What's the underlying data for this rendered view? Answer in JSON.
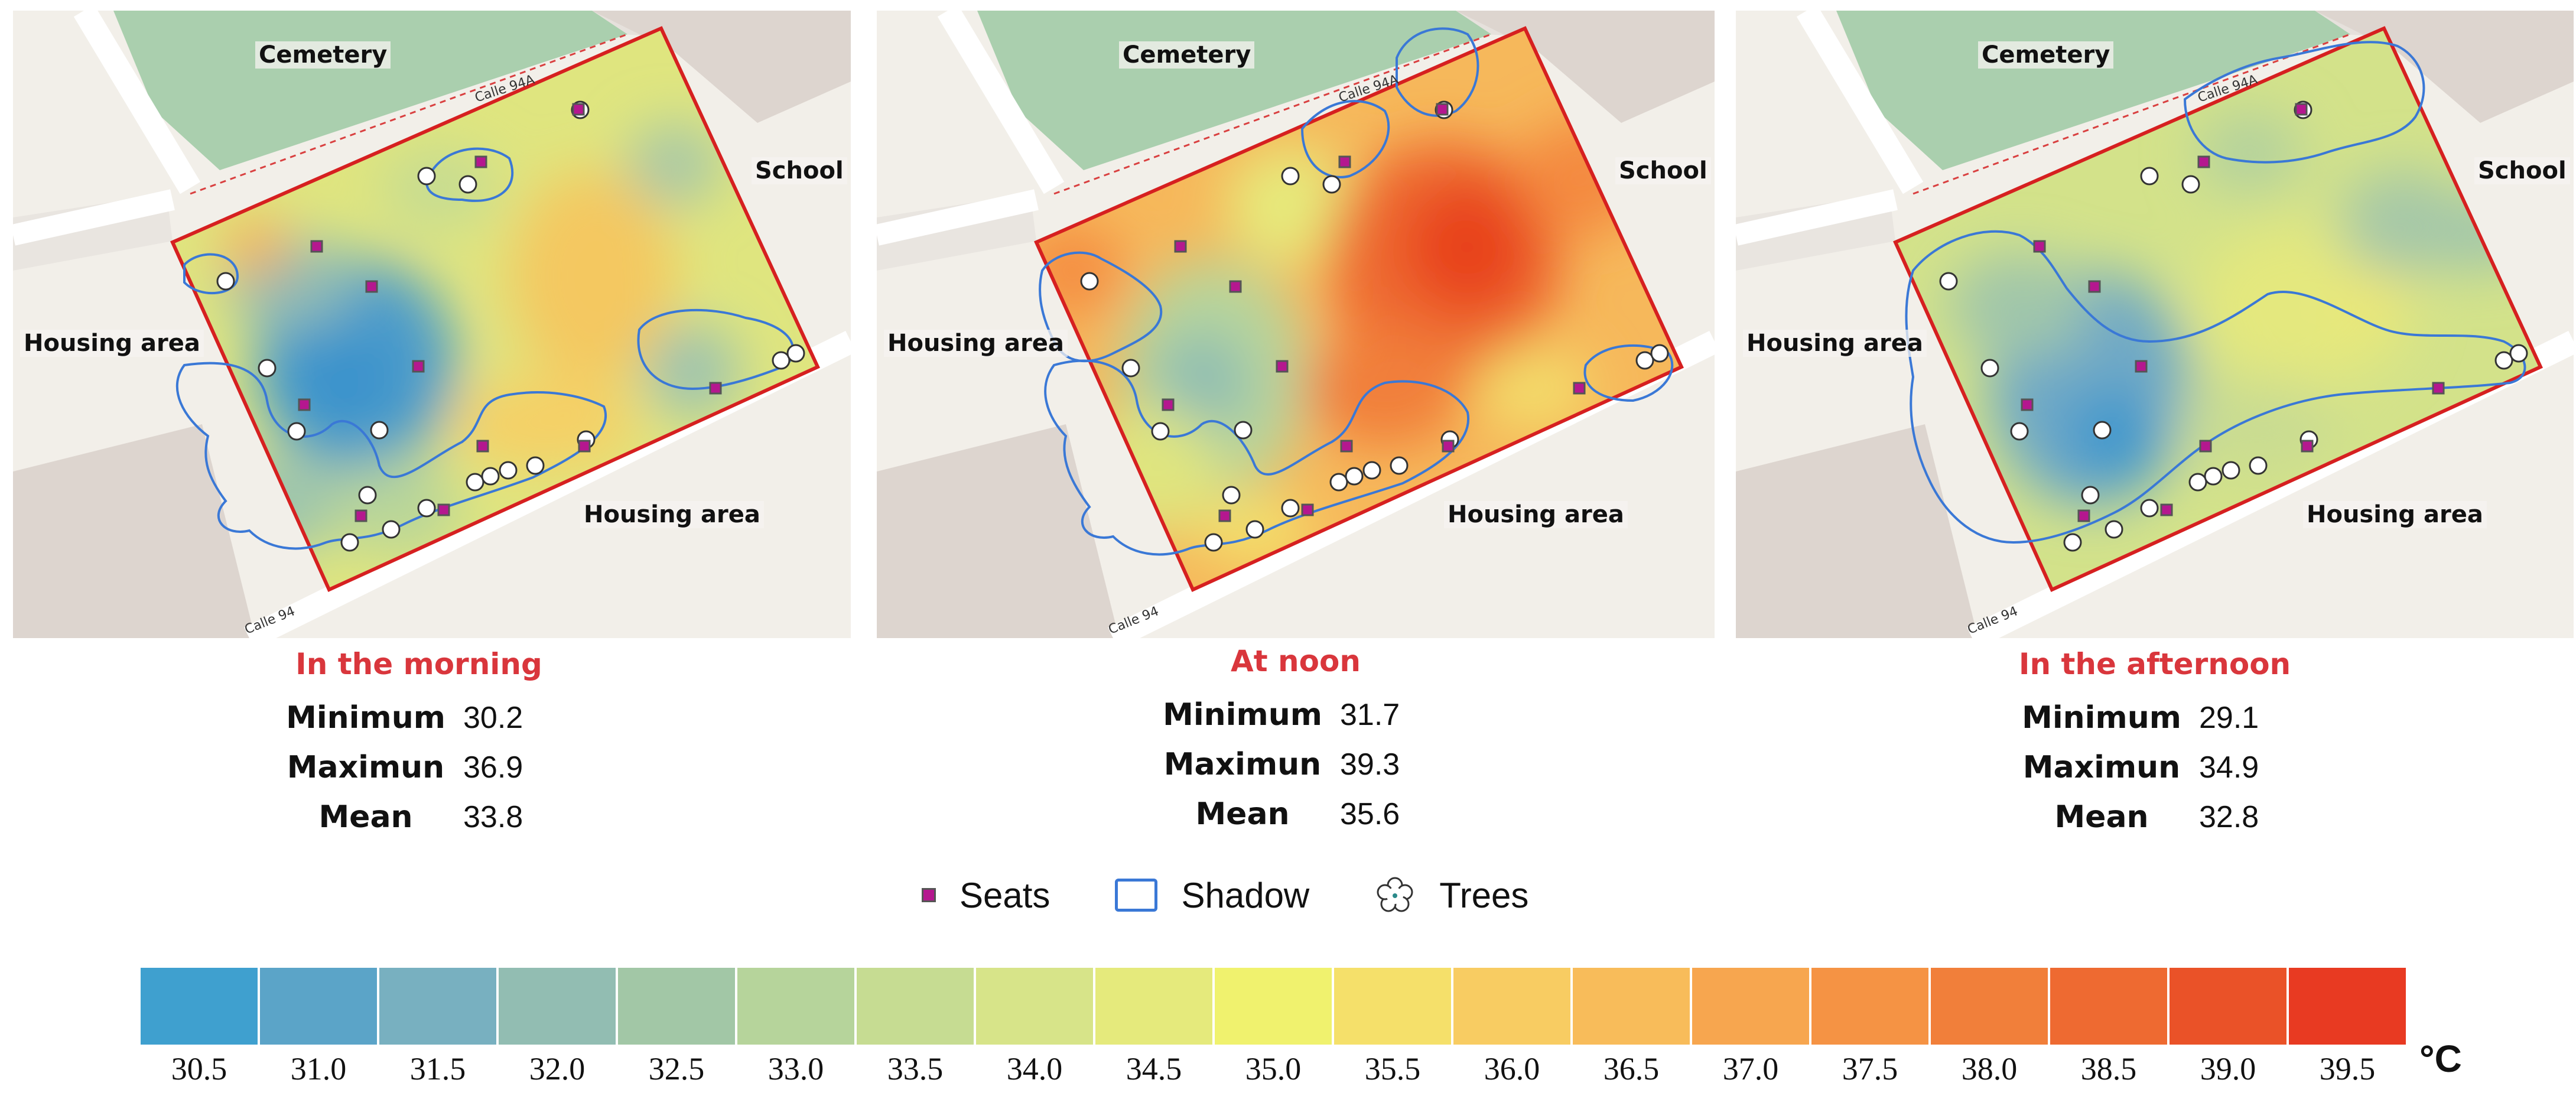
{
  "panels": [
    {
      "place_labels": {
        "cemetery": "Cemetery",
        "school": "School",
        "housing_left": "Housing area",
        "housing_bottom": "Housing area"
      },
      "street_labels": {
        "top": "Calle 94A",
        "bottom": "Calle 94"
      },
      "title": "In the morning",
      "stats": [
        {
          "label": "Minimum",
          "value": "30.2"
        },
        {
          "label": "Maximun",
          "value": "36.9"
        },
        {
          "label": "Mean",
          "value": "33.8"
        }
      ]
    },
    {
      "place_labels": {
        "cemetery": "Cemetery",
        "school": "School",
        "housing_left": "Housing area",
        "housing_bottom": "Housing area"
      },
      "street_labels": {
        "top": "Calle 94A",
        "bottom": "Calle 94"
      },
      "title": "At noon",
      "stats": [
        {
          "label": "Minimum",
          "value": "31.7"
        },
        {
          "label": "Maximun",
          "value": "39.3"
        },
        {
          "label": "Mean",
          "value": "35.6"
        }
      ]
    },
    {
      "place_labels": {
        "cemetery": "Cemetery",
        "school": "School",
        "housing_left": "Housing area",
        "housing_bottom": "Housing area"
      },
      "street_labels": {
        "top": "Calle 94A",
        "bottom": "Calle 94"
      },
      "title": "In the afternoon",
      "stats": [
        {
          "label": "Minimum",
          "value": "29.1"
        },
        {
          "label": "Maximun",
          "value": "34.9"
        },
        {
          "label": "Mean",
          "value": "32.8"
        }
      ]
    }
  ],
  "legend": {
    "seats": "Seats",
    "shadow": "Shadow",
    "trees": "Trees"
  },
  "colorbar": {
    "unit": "°C",
    "bins": [
      {
        "label": "30.5",
        "color": "#3fa0cf"
      },
      {
        "label": "31.0",
        "color": "#5ba4c8"
      },
      {
        "label": "31.5",
        "color": "#78b0c0"
      },
      {
        "label": "32.0",
        "color": "#92bdb2"
      },
      {
        "label": "32.5",
        "color": "#a2c7a6"
      },
      {
        "label": "33.0",
        "color": "#b6d49b"
      },
      {
        "label": "33.5",
        "color": "#c6dc92"
      },
      {
        "label": "34.0",
        "color": "#d7e489"
      },
      {
        "label": "34.5",
        "color": "#e5ea7c"
      },
      {
        "label": "35.0",
        "color": "#f0f26e"
      },
      {
        "label": "35.5",
        "color": "#f5e06a"
      },
      {
        "label": "36.0",
        "color": "#f8cc62"
      },
      {
        "label": "36.5",
        "color": "#f8bc5a"
      },
      {
        "label": "37.0",
        "color": "#f7a64f"
      },
      {
        "label": "37.5",
        "color": "#f59344"
      },
      {
        "label": "38.0",
        "color": "#f17f3a"
      },
      {
        "label": "38.5",
        "color": "#ee6a31"
      },
      {
        "label": "39.0",
        "color": "#ea5228"
      },
      {
        "label": "39.5",
        "color": "#e83a22"
      }
    ]
  }
}
